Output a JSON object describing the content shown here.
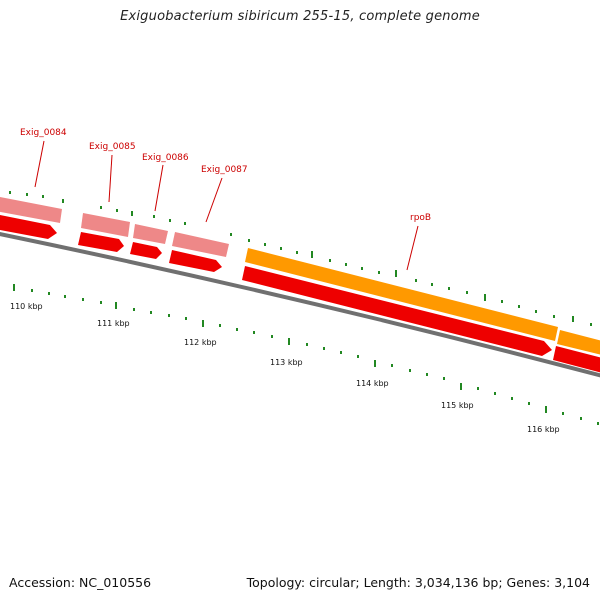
{
  "title": "Exiguobacterium sibiricum 255-15, complete genome",
  "footer": {
    "accession": "Accession: NC_010556",
    "summary": "Topology: circular; Length: 3,034,136 bp; Genes: 3,104"
  },
  "colors": {
    "cds": "#ee0000",
    "gene_light": "#ee8080",
    "gene_highlight": "#ff9900",
    "backbone": "#777777",
    "label": "#cc0000",
    "tick": "#228822"
  },
  "gene_labels": [
    {
      "id": "exig-0084",
      "text": "Exig_0084"
    },
    {
      "id": "exig-0085",
      "text": "Exig_0085"
    },
    {
      "id": "exig-0086",
      "text": "Exig_0086"
    },
    {
      "id": "exig-0087",
      "text": "Exig_0087"
    },
    {
      "id": "rpob",
      "text": "rpoB"
    }
  ],
  "scale_labels": [
    "110 kbp",
    "111 kbp",
    "112 kbp",
    "113 kbp",
    "114 kbp",
    "115 kbp",
    "116 kbp"
  ]
}
